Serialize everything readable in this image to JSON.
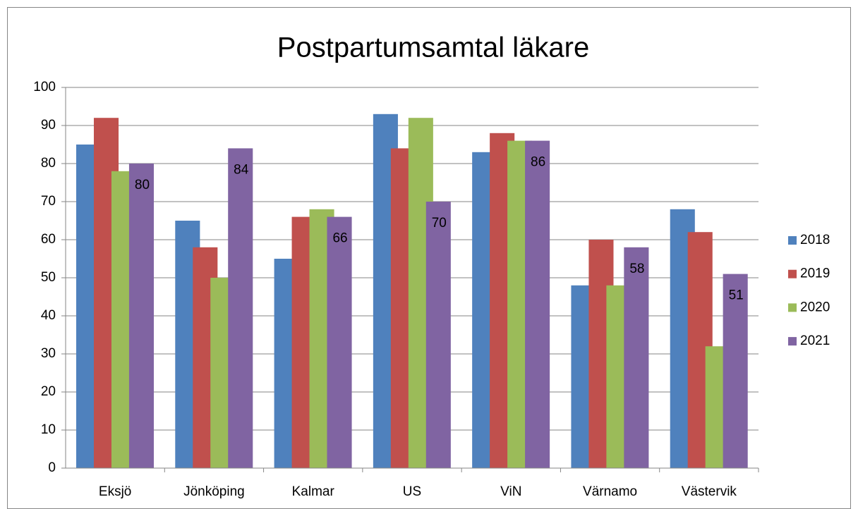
{
  "chart_data": {
    "type": "bar",
    "title": "Postpartumsamtal läkare",
    "categories": [
      "Eksjö",
      "Jönköping",
      "Kalmar",
      "US",
      "ViN",
      "Värnamo",
      "Västervik"
    ],
    "series": [
      {
        "name": "2018",
        "color": "#4f81bd",
        "values": [
          85,
          65,
          55,
          93,
          83,
          48,
          68
        ]
      },
      {
        "name": "2019",
        "color": "#c0504d",
        "values": [
          92,
          58,
          66,
          84,
          88,
          60,
          62
        ]
      },
      {
        "name": "2020",
        "color": "#9bbb59",
        "values": [
          78,
          50,
          68,
          92,
          86,
          48,
          32
        ]
      },
      {
        "name": "2021",
        "color": "#8064a2",
        "values": [
          80,
          84,
          66,
          70,
          86,
          58,
          51
        ],
        "data_labels": true
      }
    ],
    "ylim": [
      0,
      100
    ],
    "yticks": [
      0,
      10,
      20,
      30,
      40,
      50,
      60,
      70,
      80,
      90,
      100
    ],
    "grid": true,
    "legend": "right"
  }
}
